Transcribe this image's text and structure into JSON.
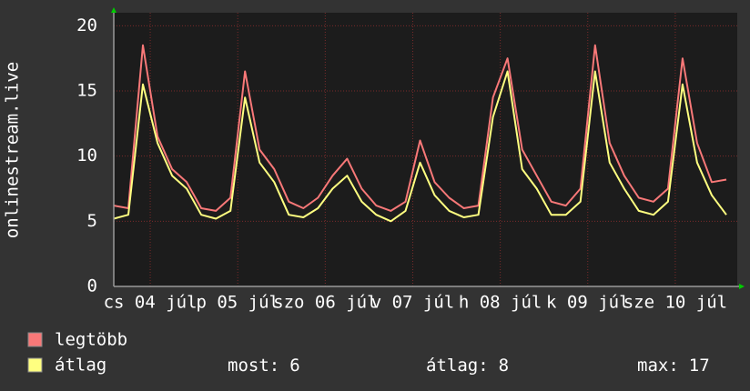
{
  "chart_data": {
    "type": "line",
    "y_label": "onlinestream.live",
    "x": [
      0,
      4,
      8,
      12,
      16,
      20,
      24,
      28,
      32,
      36,
      40,
      44,
      48,
      52,
      56,
      60,
      64,
      68,
      72,
      76,
      80,
      84,
      88,
      92,
      96,
      100,
      104,
      108,
      112,
      116,
      120,
      124,
      128,
      132,
      136,
      140,
      144,
      148,
      152,
      156,
      160,
      164,
      168
    ],
    "xlim": [
      0,
      171
    ],
    "xticks": [
      {
        "value": 10,
        "label": "cs 04 júl"
      },
      {
        "value": 34,
        "label": "p 05 júl"
      },
      {
        "value": 58,
        "label": "szo 06 júl"
      },
      {
        "value": 82,
        "label": "v 07 júl"
      },
      {
        "value": 106,
        "label": "h 08 júl"
      },
      {
        "value": 130,
        "label": "k 09 júl"
      },
      {
        "value": 154,
        "label": "sze 10 júl"
      }
    ],
    "ylim": [
      0,
      21
    ],
    "yticks": [
      0,
      5,
      10,
      15,
      20
    ],
    "grid": true,
    "series": [
      {
        "name": "legtöbb",
        "color": "#f87878",
        "values": [
          6.2,
          6,
          18.5,
          11.5,
          9,
          8,
          6,
          5.8,
          6.8,
          16.5,
          10.5,
          9,
          6.5,
          6,
          6.8,
          8.5,
          9.8,
          7.5,
          6.2,
          5.8,
          6.5,
          11.2,
          8,
          6.8,
          6,
          6.2,
          14.5,
          17.5,
          10.5,
          8.5,
          6.5,
          6.2,
          7.5,
          18.5,
          11,
          8.5,
          6.8,
          6.5,
          7.5,
          17.5,
          11,
          8,
          8.2
        ]
      },
      {
        "name": "átlag",
        "color": "#ffff80",
        "values": [
          5.2,
          5.5,
          15.5,
          11,
          8.5,
          7.5,
          5.5,
          5.2,
          5.8,
          14.5,
          9.5,
          8,
          5.5,
          5.3,
          6,
          7.5,
          8.5,
          6.5,
          5.5,
          5,
          5.8,
          9.5,
          7,
          5.8,
          5.3,
          5.5,
          13,
          16.5,
          9,
          7.5,
          5.5,
          5.5,
          6.5,
          16.5,
          9.5,
          7.5,
          5.8,
          5.5,
          6.5,
          15.5,
          9.5,
          7,
          5.5
        ]
      }
    ],
    "stats": [
      {
        "label": "most:",
        "value": 6
      },
      {
        "label": "átlag:",
        "value": 8
      },
      {
        "label": "max:",
        "value": 17
      }
    ]
  }
}
